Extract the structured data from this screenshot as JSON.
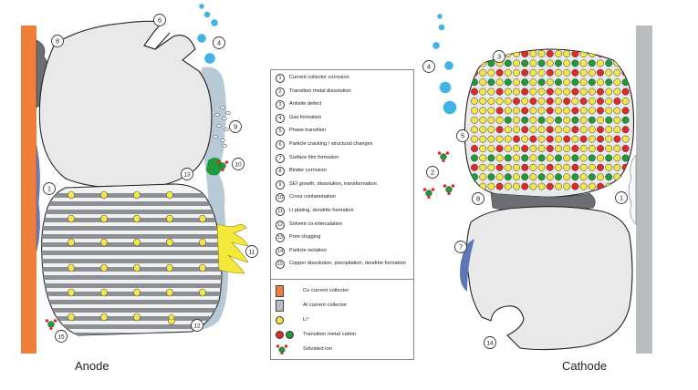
{
  "labels": {
    "anode": "Anode",
    "cathode": "Cathode"
  },
  "markers": [
    "1",
    "2",
    "3",
    "4",
    "5",
    "6",
    "7",
    "8",
    "9",
    "10",
    "11",
    "12",
    "13",
    "14",
    "15"
  ],
  "legend": {
    "mechanisms": [
      {
        "num": "1",
        "text": "Current collector corrosion"
      },
      {
        "num": "2",
        "text": "Transition metal dissolution"
      },
      {
        "num": "3",
        "text": "Antisite defect"
      },
      {
        "num": "4",
        "text": "Gas formation"
      },
      {
        "num": "5",
        "text": "Phase transition"
      },
      {
        "num": "6",
        "text": "Particle cracking / structural changes"
      },
      {
        "num": "7",
        "text": "Surface film formation"
      },
      {
        "num": "8",
        "text": "Binder corrosion"
      },
      {
        "num": "9",
        "text": "SEI growth, dissolution, transformation"
      },
      {
        "num": "10",
        "text": "Cross contamination"
      },
      {
        "num": "11",
        "text": "Li plating, dendrite formation"
      },
      {
        "num": "12",
        "text": "Solvent co-intercalation"
      },
      {
        "num": "13",
        "text": "Pore clogging"
      },
      {
        "num": "14",
        "text": "Particle isolation"
      },
      {
        "num": "15",
        "text": "Copper dissolution, precipitation, dendrite formation"
      }
    ],
    "key": {
      "cu_collector": "Cu current collector",
      "al_collector": "Al current collector",
      "li_ion": "Li⁺",
      "tm_cation": "Transition metal cation",
      "solvated_ion": "Solvated ion"
    }
  },
  "colors": {
    "cu": "#ef7f3a",
    "al": "#b9bdc0",
    "li": "#f2e64a",
    "tm_red": "#e02a2a",
    "tm_green": "#1f9a3c",
    "sei": "#b7cad6",
    "particle": "#e9e9ea",
    "gas": "#41b4e6",
    "film": "#5b77b6",
    "dendrite": "#f4e93a"
  }
}
